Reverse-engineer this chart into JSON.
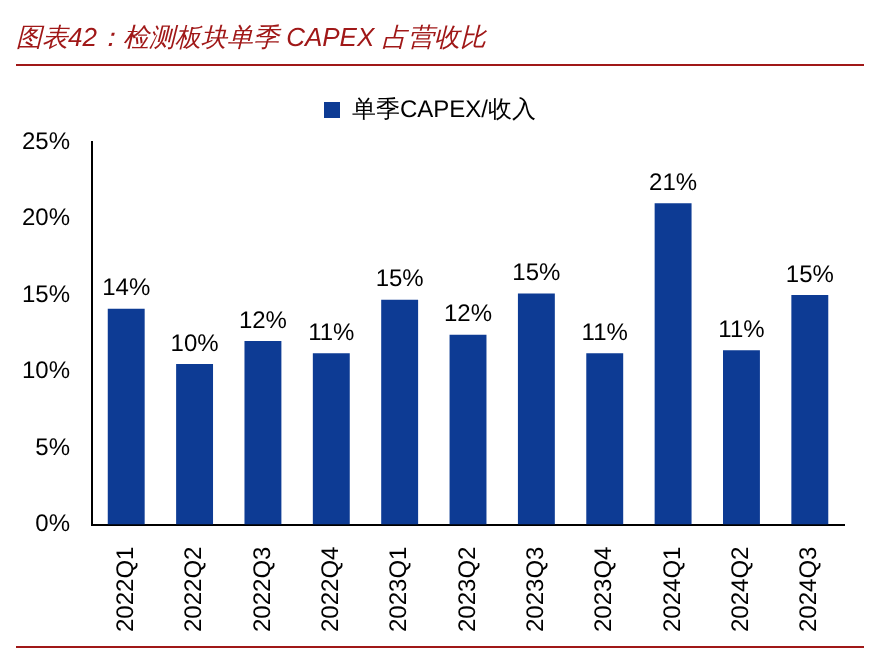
{
  "chart_data": {
    "type": "bar",
    "title": "图表42：检测板块单季 CAPEX 占营收比",
    "categories": [
      "2022Q1",
      "2022Q2",
      "2022Q3",
      "2022Q4",
      "2023Q1",
      "2023Q2",
      "2023Q3",
      "2023Q4",
      "2024Q1",
      "2024Q2",
      "2024Q3"
    ],
    "series": [
      {
        "name": "单季CAPEX/收入",
        "color": "#0d3b94",
        "values": [
          14.1,
          10.5,
          12.0,
          11.2,
          14.7,
          12.4,
          15.1,
          11.2,
          21.0,
          11.4,
          15.0
        ],
        "value_labels": [
          "14%",
          "10%",
          "12%",
          "11%",
          "15%",
          "12%",
          "15%",
          "11%",
          "21%",
          "11%",
          "15%"
        ]
      }
    ],
    "ylim": [
      0,
      25
    ],
    "yticks": [
      {
        "value": 0,
        "label": "0%"
      },
      {
        "value": 5,
        "label": "5%"
      },
      {
        "value": 10,
        "label": "10%"
      },
      {
        "value": 15,
        "label": "15%"
      },
      {
        "value": 20,
        "label": "20%"
      },
      {
        "value": 25,
        "label": "25%"
      }
    ],
    "grid": false,
    "legend": "top"
  }
}
